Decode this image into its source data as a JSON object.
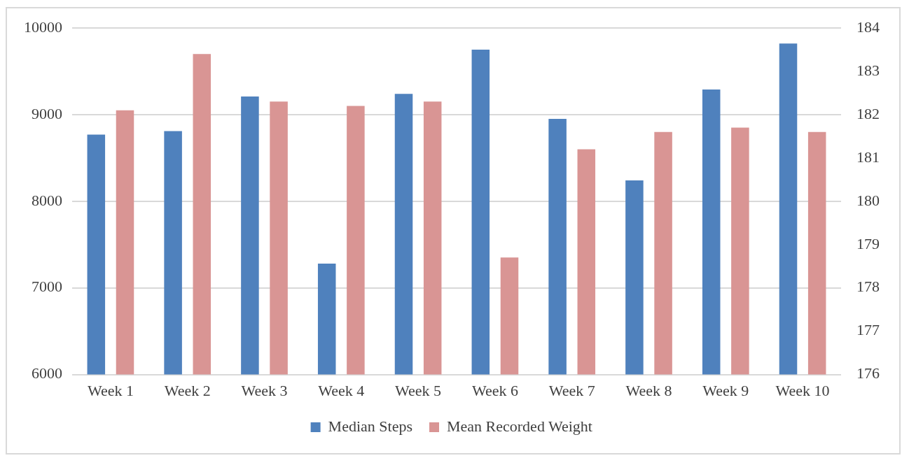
{
  "chart_data": {
    "type": "bar",
    "categories": [
      "Week 1",
      "Week 2",
      "Week 3",
      "Week 4",
      "Week 5",
      "Week 6",
      "Week 7",
      "Week 8",
      "Week 9",
      "Week 10"
    ],
    "series": [
      {
        "name": "Median Steps",
        "color": "#4f81bd",
        "values": [
          8770,
          8810,
          9210,
          7280,
          9240,
          9750,
          8950,
          8240,
          9290,
          9820
        ]
      },
      {
        "name": "Mean Recorded Weight",
        "color": "#d99594",
        "axis": "y2",
        "values": [
          182.1,
          183.4,
          182.3,
          182.2,
          182.3,
          178.7,
          181.2,
          181.6,
          181.7,
          181.6
        ]
      }
    ],
    "ylim": [
      6000,
      10000
    ],
    "yticks": [
      6000,
      7000,
      8000,
      9000,
      10000
    ],
    "y2lim": [
      176,
      184
    ],
    "y2ticks": [
      176,
      177,
      178,
      179,
      180,
      181,
      182,
      183,
      184
    ],
    "grid": "y",
    "legend": "bottom"
  }
}
